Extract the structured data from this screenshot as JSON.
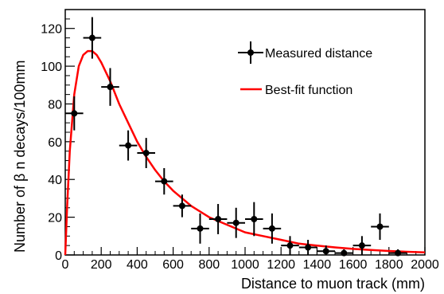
{
  "chart_data": {
    "type": "scatter",
    "xlabel": "Distance to muon track (mm)",
    "ylabel": "Number of β n decays/100mm",
    "xlim": [
      0,
      2000
    ],
    "ylim": [
      0,
      130
    ],
    "x_ticks": [
      0,
      200,
      400,
      600,
      800,
      1000,
      1200,
      1400,
      1600,
      1800,
      2000
    ],
    "y_ticks": [
      0,
      20,
      40,
      60,
      80,
      100,
      120
    ],
    "grid": false,
    "legend_position": "top-right",
    "series": [
      {
        "name": "Measured distance",
        "kind": "points-with-errors",
        "color": "#000000",
        "points": [
          {
            "x": 50,
            "y": 75,
            "x_err": 50,
            "y_err": 9
          },
          {
            "x": 150,
            "y": 115,
            "x_err": 50,
            "y_err": 11
          },
          {
            "x": 250,
            "y": 89,
            "x_err": 50,
            "y_err": 10
          },
          {
            "x": 350,
            "y": 58,
            "x_err": 50,
            "y_err": 8
          },
          {
            "x": 450,
            "y": 54,
            "x_err": 50,
            "y_err": 8
          },
          {
            "x": 550,
            "y": 39,
            "x_err": 50,
            "y_err": 7
          },
          {
            "x": 650,
            "y": 26,
            "x_err": 50,
            "y_err": 6
          },
          {
            "x": 750,
            "y": 14,
            "x_err": 50,
            "y_err": 8
          },
          {
            "x": 850,
            "y": 19,
            "x_err": 50,
            "y_err": 8
          },
          {
            "x": 950,
            "y": 17,
            "x_err": 50,
            "y_err": 8
          },
          {
            "x": 1050,
            "y": 19,
            "x_err": 50,
            "y_err": 9
          },
          {
            "x": 1150,
            "y": 14,
            "x_err": 50,
            "y_err": 8
          },
          {
            "x": 1250,
            "y": 5,
            "x_err": 50,
            "y_err": 5
          },
          {
            "x": 1350,
            "y": 4,
            "x_err": 50,
            "y_err": 4
          },
          {
            "x": 1450,
            "y": 2,
            "x_err": 50,
            "y_err": 3
          },
          {
            "x": 1550,
            "y": 1,
            "x_err": 50,
            "y_err": 2
          },
          {
            "x": 1650,
            "y": 5,
            "x_err": 50,
            "y_err": 5
          },
          {
            "x": 1750,
            "y": 15,
            "x_err": 50,
            "y_err": 7
          },
          {
            "x": 1850,
            "y": 1,
            "x_err": 50,
            "y_err": 2
          }
        ]
      },
      {
        "name": "Best-fit function",
        "kind": "line",
        "color": "#ff0000",
        "x": [
          0,
          10,
          25,
          50,
          75,
          100,
          125,
          150,
          175,
          200,
          250,
          300,
          350,
          400,
          450,
          500,
          550,
          600,
          650,
          700,
          800,
          900,
          1000,
          1100,
          1200,
          1300,
          1400,
          1500,
          1600,
          1700,
          1800,
          1900,
          2000
        ],
        "y": [
          0,
          25,
          55,
          85,
          100,
          106,
          108,
          108,
          106,
          102,
          92,
          80,
          70,
          60,
          52,
          45,
          39,
          34,
          30,
          26,
          20,
          16,
          12,
          10,
          8,
          6,
          5,
          4,
          3.2,
          2.6,
          2.1,
          1.7,
          1.4
        ]
      }
    ]
  }
}
